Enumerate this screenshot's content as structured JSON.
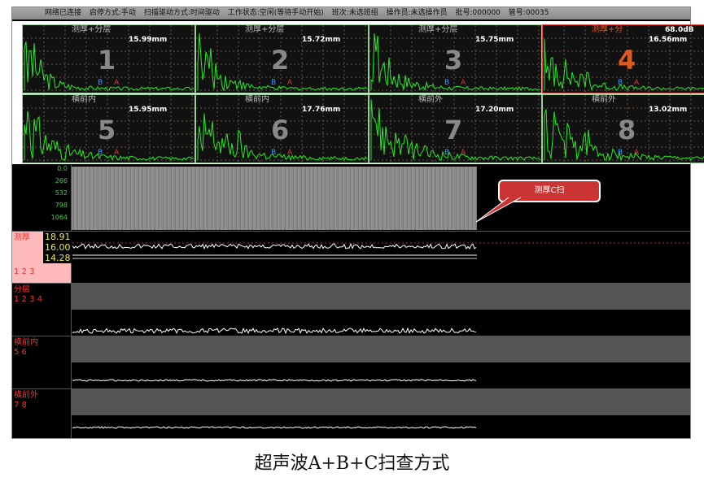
{
  "status_bar": [
    "网络已连接",
    "启停方式:手动",
    "扫描驱动方式:时间驱动",
    "工作状态:空闲(等待手动开始)",
    "班次:未选班组",
    "操作员:未选操作员",
    "批号:000000",
    "管号:00035"
  ],
  "channels": [
    {
      "title": "测厚+分层",
      "value": "15.99mm",
      "num": "1",
      "b": "B",
      "a": "A"
    },
    {
      "title": "测厚+分层",
      "value": "15.72mm",
      "num": "2",
      "b": "B",
      "a": "A"
    },
    {
      "title": "测厚+分层",
      "value": "15.75mm",
      "num": "3",
      "b": "B",
      "a": "A"
    },
    {
      "title": "测厚+分",
      "gain": "68.0dB",
      "value": "16.56mm",
      "num": "4",
      "b": "B",
      "a": "A",
      "selected": true
    },
    {
      "title": "横前内",
      "value": "15.95mm",
      "num": "5",
      "b": "B",
      "a": "A"
    },
    {
      "title": "横前内",
      "value": "17.76mm",
      "num": "6",
      "b": "B",
      "a": "A"
    },
    {
      "title": "横前外",
      "value": "17.20mm",
      "num": "7",
      "b": "B",
      "a": "A"
    },
    {
      "title": "横前外",
      "value": "13.02mm",
      "num": "8",
      "b": "B",
      "a": "A"
    }
  ],
  "cscan": {
    "ticks": [
      "0.0",
      "266",
      "532",
      "798",
      "1064"
    ],
    "callout": "测厚C扫"
  },
  "strips": [
    {
      "name": "测厚",
      "channels": "1 2 3",
      "values": [
        "18.91",
        "16.00",
        "14.28"
      ]
    },
    {
      "name": "分层",
      "channels": "1 2 3 4"
    },
    {
      "name": "横前内",
      "channels": "5 6"
    },
    {
      "name": "横前外",
      "channels": "7 8"
    }
  ],
  "caption": "超声波A+B+C扫查方式",
  "colors": {
    "wave": "#22ee22",
    "selected_border": "#ee4444",
    "label": "#ee3333"
  }
}
